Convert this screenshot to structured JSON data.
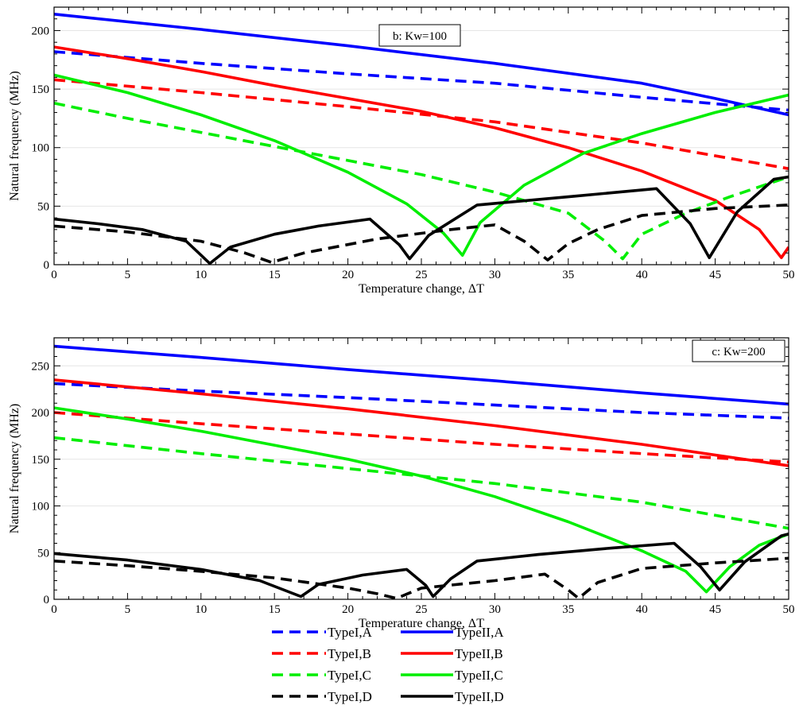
{
  "chart_data": [
    {
      "type": "line",
      "annotation": "b: Kw=100",
      "xlabel": "Temperature change,  ΔT",
      "ylabel": "Natural frequency (MHz)",
      "xlim": [
        0,
        50
      ],
      "ylim": [
        0,
        220
      ],
      "xticks": [
        0,
        5,
        10,
        15,
        20,
        25,
        30,
        35,
        40,
        45,
        50
      ],
      "yticks": [
        0,
        50,
        100,
        150,
        200
      ],
      "grid": "horizontal",
      "series": [
        {
          "name": "TypeII,A",
          "color": "#0000ff",
          "dash": "solid",
          "x": [
            0,
            10,
            20,
            30,
            40,
            45,
            50
          ],
          "y": [
            214,
            201,
            187,
            172,
            155,
            142,
            128
          ]
        },
        {
          "name": "TypeI,A",
          "color": "#0000ff",
          "dash": "dashed",
          "x": [
            0,
            10,
            20,
            30,
            40,
            50
          ],
          "y": [
            182,
            172,
            163,
            155,
            143,
            132
          ]
        },
        {
          "name": "TypeII,B",
          "color": "#ff0000",
          "dash": "solid",
          "x": [
            0,
            5,
            10,
            15,
            20,
            25,
            30,
            35,
            40,
            45,
            48,
            49.5,
            50
          ],
          "y": [
            186,
            176,
            165,
            153,
            142,
            131,
            117,
            100,
            80,
            55,
            30,
            6,
            15
          ]
        },
        {
          "name": "TypeI,B",
          "color": "#ff0000",
          "dash": "dashed",
          "x": [
            0,
            10,
            20,
            30,
            40,
            50
          ],
          "y": [
            158,
            147,
            135,
            122,
            104,
            82
          ]
        },
        {
          "name": "TypeII,C",
          "color": "#00ee00",
          "dash": "solid",
          "x": [
            0,
            5,
            10,
            15,
            20,
            24,
            26.5,
            27.8,
            29,
            32,
            36,
            40,
            45,
            50
          ],
          "y": [
            162,
            147,
            128,
            106,
            79,
            52,
            27,
            8,
            36,
            68,
            95,
            112,
            130,
            145
          ]
        },
        {
          "name": "TypeI,C",
          "color": "#00ee00",
          "dash": "dashed",
          "x": [
            0,
            5,
            10,
            15,
            20,
            25,
            30,
            35,
            37.5,
            38.7,
            40,
            43,
            46,
            50
          ],
          "y": [
            138,
            125,
            113,
            101,
            89,
            77,
            62,
            44,
            20,
            5,
            26,
            44,
            58,
            75
          ]
        },
        {
          "name": "TypeII,D",
          "color": "#000000",
          "dash": "solid",
          "x": [
            0,
            3,
            6,
            9,
            10.6,
            12,
            15,
            18,
            21.5,
            23.5,
            24.2,
            25.5,
            28.8,
            35,
            41,
            43.3,
            44.6,
            46.5,
            49,
            50
          ],
          "y": [
            39,
            35,
            30,
            20,
            1,
            15,
            26,
            33,
            39,
            17,
            5,
            25,
            51,
            58,
            65,
            35,
            6,
            45,
            73,
            75
          ]
        },
        {
          "name": "TypeI,D",
          "color": "#000000",
          "dash": "dashed",
          "x": [
            0,
            5,
            10,
            13,
            14.8,
            17,
            22,
            27,
            30,
            32,
            33.6,
            35,
            37,
            40,
            45,
            50
          ],
          "y": [
            33,
            28,
            20,
            10,
            2,
            10,
            22,
            30,
            34,
            20,
            4,
            18,
            30,
            42,
            48,
            51
          ]
        }
      ]
    },
    {
      "type": "line",
      "annotation": "c: Kw=200",
      "xlabel": "Temperature change,  ΔT",
      "ylabel": "Natural frequency (MHz)",
      "xlim": [
        0,
        50
      ],
      "ylim": [
        0,
        280
      ],
      "xticks": [
        0,
        5,
        10,
        15,
        20,
        25,
        30,
        35,
        40,
        45,
        50
      ],
      "yticks": [
        0,
        50,
        100,
        150,
        200,
        250
      ],
      "grid": "horizontal",
      "series": [
        {
          "name": "TypeII,A",
          "color": "#0000ff",
          "dash": "solid",
          "x": [
            0,
            10,
            20,
            30,
            40,
            50
          ],
          "y": [
            271,
            259,
            246,
            234,
            221,
            209
          ]
        },
        {
          "name": "TypeI,A",
          "color": "#0000ff",
          "dash": "dashed",
          "x": [
            0,
            10,
            20,
            30,
            40,
            50
          ],
          "y": [
            231,
            223,
            216,
            208,
            200,
            194
          ]
        },
        {
          "name": "TypeII,B",
          "color": "#ff0000",
          "dash": "solid",
          "x": [
            0,
            10,
            20,
            30,
            40,
            50
          ],
          "y": [
            235,
            220,
            204,
            186,
            166,
            143
          ]
        },
        {
          "name": "TypeI,B",
          "color": "#ff0000",
          "dash": "dashed",
          "x": [
            0,
            10,
            20,
            30,
            40,
            50
          ],
          "y": [
            200,
            188,
            177,
            166,
            156,
            147
          ]
        },
        {
          "name": "TypeII,C",
          "color": "#00ee00",
          "dash": "solid",
          "x": [
            0,
            5,
            10,
            15,
            20,
            25,
            30,
            35,
            40,
            43,
            44.4,
            46,
            48,
            50
          ],
          "y": [
            205,
            193,
            180,
            165,
            150,
            132,
            110,
            83,
            52,
            30,
            8,
            35,
            58,
            70
          ]
        },
        {
          "name": "TypeI,C",
          "color": "#00ee00",
          "dash": "dashed",
          "x": [
            0,
            10,
            20,
            30,
            40,
            50
          ],
          "y": [
            173,
            156,
            140,
            124,
            104,
            76
          ]
        },
        {
          "name": "TypeII,D",
          "color": "#000000",
          "dash": "solid",
          "x": [
            0,
            5,
            10,
            14,
            16.8,
            18,
            21,
            24,
            25.3,
            25.8,
            27,
            28.8,
            33,
            38,
            42.2,
            44,
            45.3,
            47,
            49.5,
            50
          ],
          "y": [
            49,
            42,
            32,
            20,
            3,
            16,
            26,
            32,
            15,
            3,
            22,
            41,
            48,
            55,
            60,
            35,
            10,
            40,
            68,
            70
          ]
        },
        {
          "name": "TypeI,D",
          "color": "#000000",
          "dash": "dashed",
          "x": [
            0,
            5,
            10,
            15,
            20,
            22,
            23.3,
            25,
            30,
            33.4,
            35,
            35.7,
            37,
            40,
            45,
            50
          ],
          "y": [
            41,
            36,
            30,
            23,
            12,
            6,
            1,
            12,
            20,
            27,
            10,
            1,
            18,
            33,
            39,
            44
          ]
        }
      ]
    }
  ],
  "legend": {
    "entries": [
      {
        "label": "TypeI,A",
        "color": "#0000ff",
        "dash": "dashed"
      },
      {
        "label": "TypeII,A",
        "color": "#0000ff",
        "dash": "solid"
      },
      {
        "label": "TypeI,B",
        "color": "#ff0000",
        "dash": "dashed"
      },
      {
        "label": "TypeII,B",
        "color": "#ff0000",
        "dash": "solid"
      },
      {
        "label": "TypeI,C",
        "color": "#00ee00",
        "dash": "dashed"
      },
      {
        "label": "TypeII,C",
        "color": "#00ee00",
        "dash": "solid"
      },
      {
        "label": "TypeI,D",
        "color": "#000000",
        "dash": "dashed"
      },
      {
        "label": "TypeII,D",
        "color": "#000000",
        "dash": "solid"
      }
    ]
  }
}
